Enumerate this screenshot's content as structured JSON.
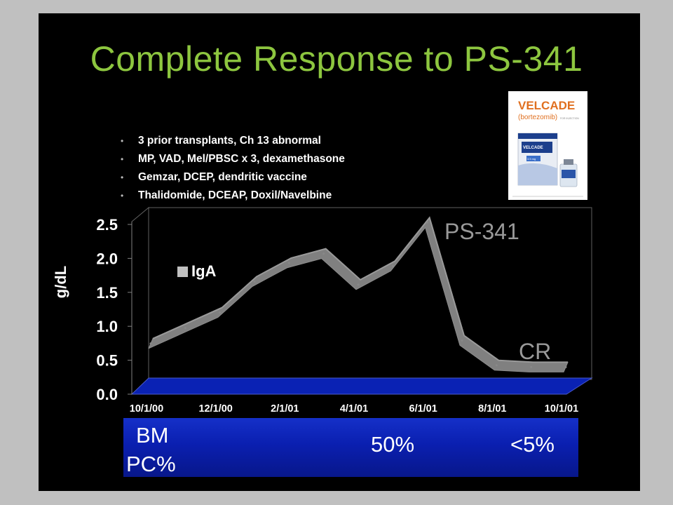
{
  "title": "Complete Response to PS-341",
  "bullets": [
    "3 prior transplants, Ch 13 abnormal",
    "MP, VAD, Mel/PBSC x 3, dexamethasone",
    "Gemzar, DCEP, dendritic vaccine",
    "Thalidomide, DCEAP, Doxil/Navelbine"
  ],
  "product_image": {
    "brand": "VELCADE",
    "subtitle": "(bortezomib)",
    "subtitle_small": "FOR INJECTION",
    "box_label": "VELCADE",
    "dose_label": "3.5 mg"
  },
  "colors": {
    "slide_bg": "#000000",
    "title": "#8dc63f",
    "series": "#808080",
    "floor": "#0a22b4",
    "bm_box": "#0a1fb0"
  },
  "chart_data": {
    "type": "line",
    "title": "",
    "ylabel": "g/dL",
    "xlabel": "",
    "ylim": [
      0,
      2.5
    ],
    "yticks": [
      "0.0",
      "0.5",
      "1.0",
      "1.5",
      "2.0",
      "2.5"
    ],
    "xticks": [
      "10/1/00",
      "12/1/00",
      "2/1/01",
      "4/1/01",
      "6/1/01",
      "8/1/01",
      "10/1/01"
    ],
    "three_d": true,
    "grid": false,
    "legend": "left",
    "series": [
      {
        "name": "IgA",
        "x": [
          "10/1/00",
          "11/1/00",
          "12/1/00",
          "1/1/01",
          "2/1/01",
          "3/1/01",
          "4/1/01",
          "5/1/01",
          "6/1/01",
          "7/1/01",
          "8/1/01",
          "9/1/01",
          "10/1/01"
        ],
        "values": [
          0.5,
          0.75,
          1.0,
          1.5,
          1.8,
          1.95,
          1.45,
          1.75,
          2.45,
          0.55,
          0.15,
          0.12,
          0.12
        ]
      }
    ],
    "annotations": [
      {
        "text": "PS-341",
        "x": "6/1/01",
        "y": 2.4
      },
      {
        "text": "CR",
        "x": "9/1/01",
        "y": 0.6
      }
    ]
  },
  "bm_pc": {
    "label_line1": "BM",
    "label_line2": "PC%",
    "value_mid": "50%",
    "value_end": "<5%"
  }
}
